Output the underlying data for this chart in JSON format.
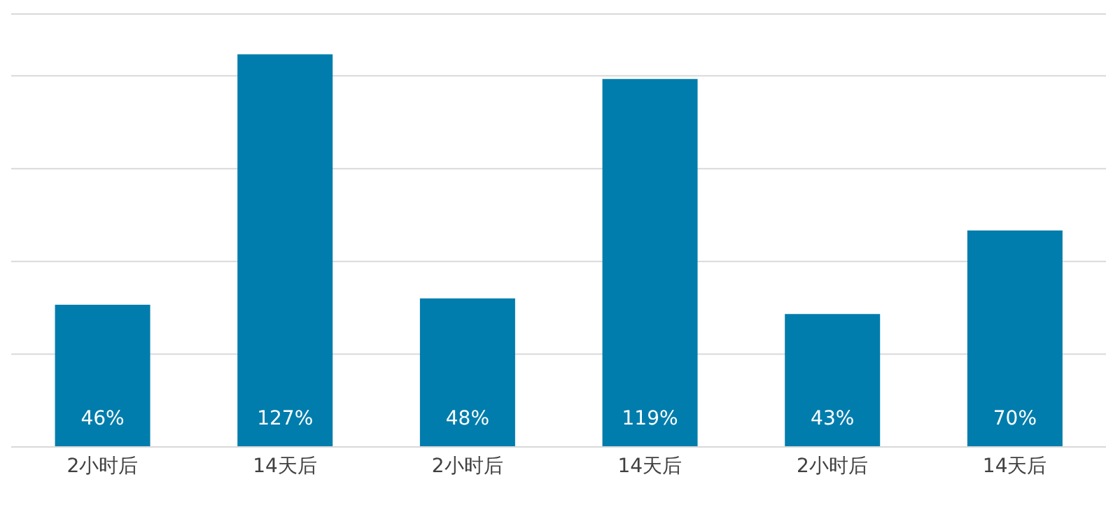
{
  "chart_data": {
    "type": "bar",
    "categories": [
      "2小时后",
      "14天后",
      "2小时后",
      "14天后",
      "2小时后",
      "14天后"
    ],
    "values": [
      46,
      127,
      48,
      119,
      43,
      70
    ],
    "value_labels": [
      "46%",
      "127%",
      "48%",
      "119%",
      "43%",
      "70%"
    ],
    "color": "#007dac",
    "ylim": [
      0,
      140
    ],
    "grid": "y",
    "tick_labels": "x",
    "legend": false
  }
}
